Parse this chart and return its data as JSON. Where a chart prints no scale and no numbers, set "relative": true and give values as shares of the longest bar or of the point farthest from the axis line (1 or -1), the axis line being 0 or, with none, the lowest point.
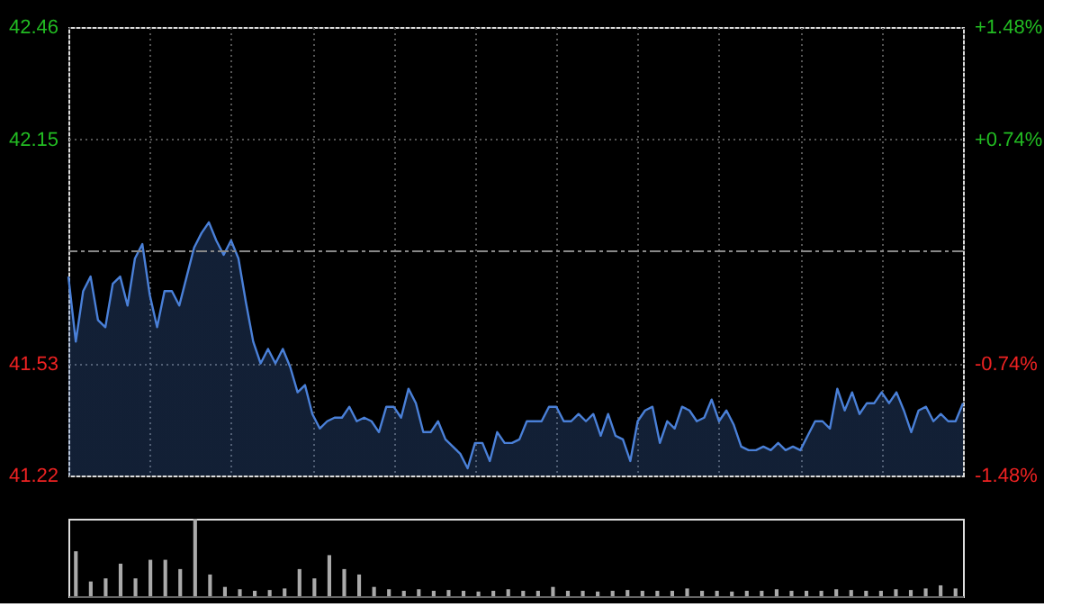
{
  "chart_data": [
    {
      "type": "area",
      "categories": [
        null,
        null,
        null,
        null,
        null,
        null,
        null,
        null,
        null,
        null,
        null,
        null,
        null,
        null,
        null,
        null,
        null,
        null,
        null,
        null,
        null,
        null,
        null,
        null,
        null,
        null,
        null,
        null,
        null,
        null,
        null,
        null,
        null,
        null,
        null,
        null,
        null,
        null,
        null,
        null,
        null,
        null,
        null,
        null,
        null,
        null,
        null,
        null,
        null,
        null,
        null,
        null,
        null,
        null,
        null,
        null,
        null,
        null,
        null,
        null,
        null,
        null,
        null,
        null,
        null,
        null,
        null,
        null,
        null,
        null,
        null,
        null,
        null,
        null,
        null,
        null,
        null,
        null,
        null,
        null,
        null,
        null,
        null,
        null,
        null,
        null,
        null,
        null,
        null,
        null,
        null,
        null,
        null,
        null,
        null,
        null,
        null,
        null,
        null,
        null,
        null,
        null,
        null,
        null,
        null,
        null,
        null,
        null,
        null,
        null,
        null,
        null,
        null,
        null,
        null,
        null,
        null,
        null,
        null,
        null,
        null,
        null
      ],
      "series": [
        {
          "color": "#4a80d8",
          "values": [
            41.77,
            41.59,
            41.73,
            41.77,
            41.65,
            41.63,
            41.75,
            41.77,
            41.69,
            41.82,
            41.86,
            41.72,
            41.63,
            41.73,
            41.73,
            41.69,
            41.77,
            41.85,
            41.89,
            41.92,
            41.87,
            41.83,
            41.87,
            41.82,
            41.7,
            41.59,
            41.53,
            41.57,
            41.53,
            41.57,
            41.52,
            41.45,
            41.47,
            41.39,
            41.35,
            41.37,
            41.38,
            41.38,
            41.41,
            41.37,
            41.38,
            41.37,
            41.34,
            41.41,
            41.41,
            41.38,
            41.46,
            41.42,
            41.34,
            41.34,
            41.37,
            41.32,
            41.3,
            41.28,
            41.24,
            41.31,
            41.31,
            41.26,
            41.34,
            41.31,
            41.31,
            41.32,
            41.37,
            41.37,
            41.37,
            41.41,
            41.41,
            41.37,
            41.37,
            41.39,
            41.37,
            41.39,
            41.33,
            41.39,
            41.33,
            41.32,
            41.26,
            41.37,
            41.4,
            41.41,
            41.31,
            41.37,
            41.35,
            41.41,
            41.4,
            41.37,
            41.38,
            41.43,
            41.37,
            41.4,
            41.36,
            41.3,
            41.29,
            41.29,
            41.3,
            41.29,
            41.31,
            41.29,
            41.3,
            41.29,
            41.33,
            41.37,
            41.37,
            41.35,
            41.46,
            41.4,
            41.45,
            41.39,
            41.42,
            41.42,
            41.45,
            41.42,
            41.45,
            41.4,
            41.34,
            41.4,
            41.41,
            41.37,
            41.39,
            41.37,
            41.37,
            41.42
          ]
        }
      ],
      "ylim": [
        41.22,
        42.46
      ],
      "yticks": [
        41.22,
        41.53,
        42.15,
        42.46
      ],
      "y2lim": [
        -1.48,
        1.48
      ],
      "y2ticks": [
        {
          "value": -1.48,
          "label": "-1.48%"
        },
        {
          "value": -0.74,
          "label": "-0.74%"
        },
        {
          "value": 0.74,
          "label": "+0.74%"
        },
        {
          "value": 1.48,
          "label": "+1.48%"
        }
      ],
      "ref_lines": [
        {
          "axis": "y",
          "value": 41.84,
          "line_style": "dashed",
          "color": "#888888"
        }
      ],
      "grid": true,
      "legend": false
    },
    {
      "type": "bar",
      "relative": true,
      "categories": [
        null,
        null,
        null,
        null,
        null,
        null,
        null,
        null,
        null,
        null,
        null,
        null,
        null,
        null,
        null,
        null,
        null,
        null,
        null,
        null,
        null,
        null,
        null,
        null,
        null,
        null,
        null,
        null,
        null,
        null,
        null,
        null,
        null,
        null,
        null,
        null,
        null,
        null,
        null,
        null,
        null,
        null,
        null,
        null,
        null,
        null,
        null,
        null,
        null,
        null,
        null,
        null,
        null,
        null,
        null,
        null,
        null,
        null,
        null,
        null
      ],
      "series": [
        {
          "color": "#aaaaaa",
          "values": [
            0.58,
            0.19,
            0.23,
            0.42,
            0.23,
            0.47,
            0.47,
            0.35,
            1,
            0.28,
            0.12,
            0.09,
            0.07,
            0.08,
            0.1,
            0.35,
            0.23,
            0.53,
            0.35,
            0.28,
            0.12,
            0.09,
            0.07,
            0.09,
            0.07,
            0.08,
            0.07,
            0.06,
            0.07,
            0.09,
            0.07,
            0.07,
            0.12,
            0.07,
            0.07,
            0.06,
            0.07,
            0.08,
            0.07,
            0.07,
            0.07,
            0.1,
            0.07,
            0.07,
            0.06,
            0.07,
            0.07,
            0.09,
            0.07,
            0.07,
            0.07,
            0.09,
            0.08,
            0.07,
            0.07,
            0.09,
            0.08,
            0.1,
            0.14,
            0.1
          ]
        }
      ],
      "legend": false
    }
  ]
}
